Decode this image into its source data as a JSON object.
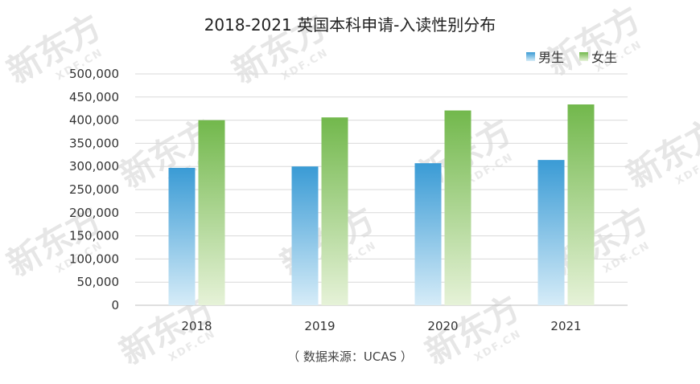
{
  "chart_data": {
    "type": "bar",
    "title": "2018-2021 英国本科申请-入读性别分布",
    "categories": [
      "2018",
      "2019",
      "2020",
      "2021"
    ],
    "series": [
      {
        "name": "男生",
        "values": [
          297000,
          300000,
          307000,
          314000
        ],
        "color_top": "#3a9bd5",
        "color_bottom": "#d6ecf8"
      },
      {
        "name": "女生",
        "values": [
          400000,
          406000,
          421000,
          434000
        ],
        "color_top": "#72b84c",
        "color_bottom": "#e6f2d8"
      }
    ],
    "ylim": [
      0,
      500000
    ],
    "yticks": [
      "0",
      "50,000",
      "100,000",
      "150,000",
      "200,000",
      "250,000",
      "300,000",
      "350,000",
      "400,000",
      "450,000",
      "500,000"
    ],
    "grid": true,
    "legend_position": "top-right",
    "xlabel": "",
    "ylabel": ""
  },
  "source_note": "（ 数据来源：UCAS ）",
  "watermark": {
    "logo": "新东方",
    "sub": "XDF.CN"
  }
}
